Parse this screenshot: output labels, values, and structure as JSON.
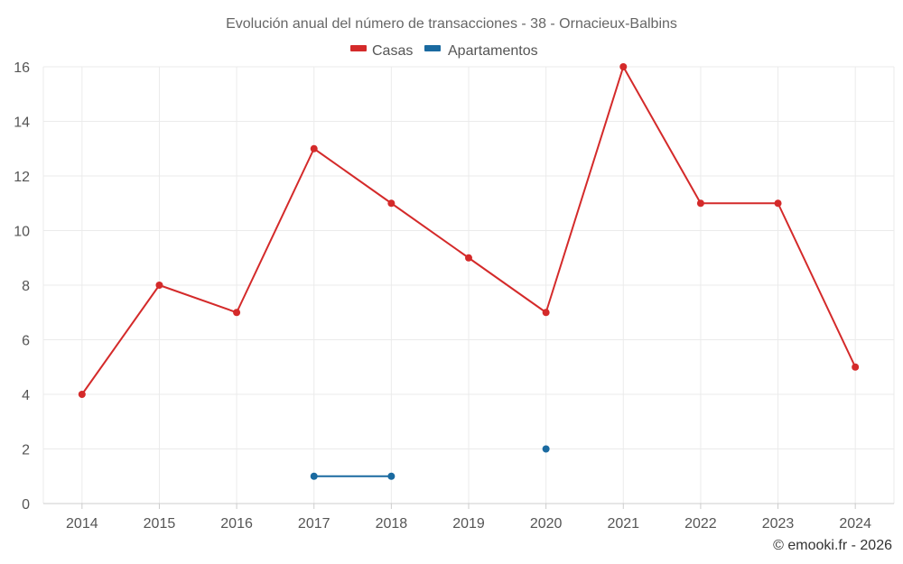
{
  "chart_data": {
    "type": "line",
    "title": "Evolución anual del número de transacciones - 38 - Ornacieux-Balbins",
    "categories": [
      "2014",
      "2015",
      "2016",
      "2017",
      "2018",
      "2019",
      "2020",
      "2021",
      "2022",
      "2023",
      "2024"
    ],
    "series": [
      {
        "name": "Casas",
        "color": "#d42a2a",
        "values": [
          4,
          8,
          7,
          13,
          11,
          9,
          7,
          16,
          11,
          11,
          5
        ]
      },
      {
        "name": "Apartamentos",
        "color": "#1a6aa0",
        "values": [
          null,
          null,
          null,
          1,
          1,
          null,
          2,
          null,
          null,
          null,
          null
        ]
      }
    ],
    "ylim": [
      0,
      16
    ],
    "yticks": [
      0,
      2,
      4,
      6,
      8,
      10,
      12,
      14,
      16
    ],
    "grid": true,
    "legend_position": "top-center"
  },
  "credit": "© emooki.fr - 2026"
}
